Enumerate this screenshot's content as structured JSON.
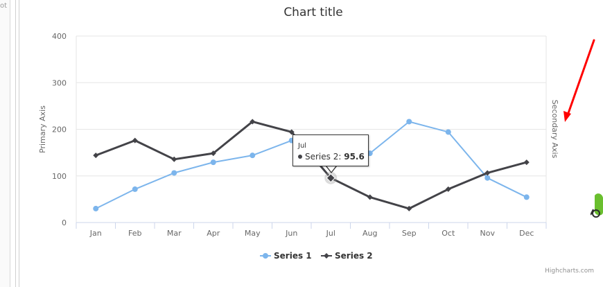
{
  "left_rail": {
    "fragment_text": "ot"
  },
  "chart_data": {
    "type": "line",
    "title": "Chart title",
    "categories": [
      "Jan",
      "Feb",
      "Mar",
      "Apr",
      "May",
      "Jun",
      "Jul",
      "Aug",
      "Sep",
      "Oct",
      "Nov",
      "Dec"
    ],
    "series": [
      {
        "name": "Series 1",
        "color": "#7cb5ec",
        "marker": "circle",
        "values": [
          29.9,
          71.5,
          106.4,
          129.2,
          144.0,
          176.0,
          135.6,
          148.5,
          216.4,
          194.1,
          95.6,
          54.4
        ]
      },
      {
        "name": "Series 2",
        "color": "#434348",
        "marker": "diamond",
        "values": [
          144.0,
          176.0,
          135.6,
          148.5,
          216.4,
          194.1,
          95.6,
          54.4,
          29.9,
          71.5,
          106.4,
          129.2
        ]
      }
    ],
    "y_primary": {
      "label": "Primary Axis",
      "min": 0,
      "max": 400,
      "ticks": [
        0,
        100,
        200,
        300,
        400
      ]
    },
    "y_secondary": {
      "label": "Secondary Axis"
    },
    "grid": true,
    "legend_position": "bottom-center",
    "tooltip": {
      "category": "Jul",
      "series": "Series 2",
      "value": "95.6",
      "label_sep": ":"
    }
  },
  "credits": "Highcharts.com",
  "annotation": {
    "arrow_color": "#ff0000"
  }
}
